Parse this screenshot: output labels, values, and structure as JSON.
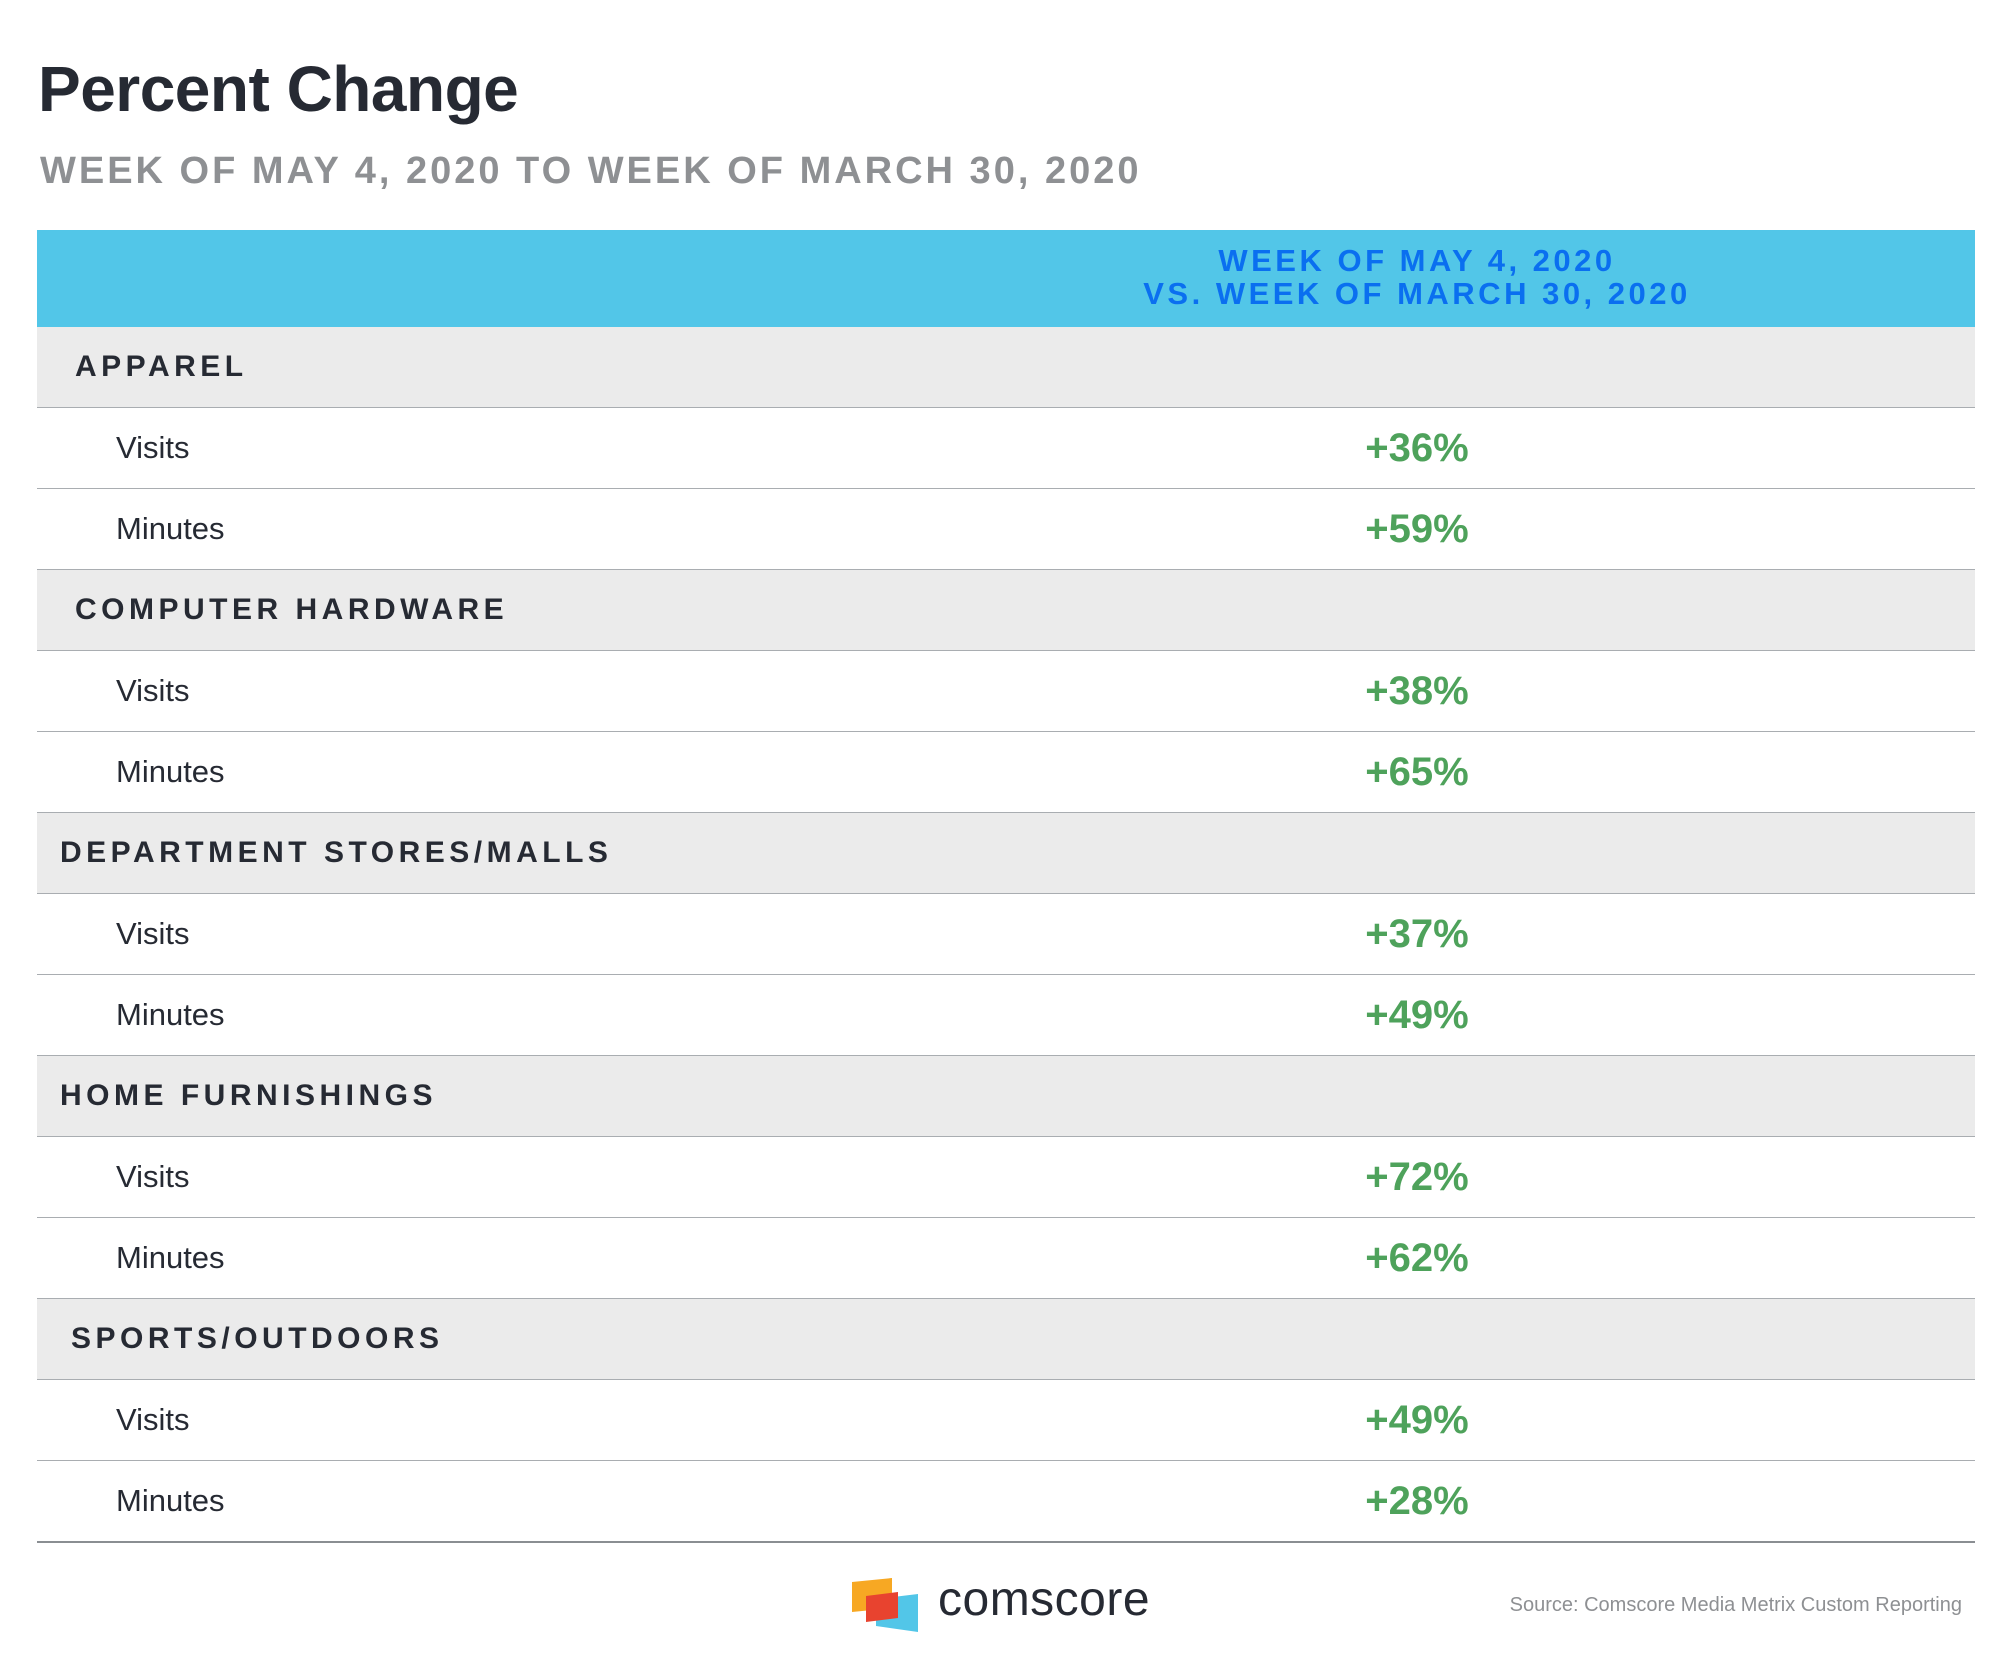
{
  "chart_data": {
    "type": "table",
    "title": "Percent Change",
    "subtitle": "WEEK OF MAY 4, 2020 TO WEEK OF MARCH 30, 2020",
    "column_header": [
      "WEEK OF MAY 4, 2020",
      "VS. WEEK OF MARCH 30, 2020"
    ],
    "categories": [
      {
        "name": "APPAREL",
        "rows": [
          {
            "metric": "Visits",
            "value": "+36%"
          },
          {
            "metric": "Minutes",
            "value": "+59%"
          }
        ]
      },
      {
        "name": "COMPUTER HARDWARE",
        "rows": [
          {
            "metric": "Visits",
            "value": "+38%"
          },
          {
            "metric": "Minutes",
            "value": "+65%"
          }
        ]
      },
      {
        "name": "DEPARTMENT STORES/MALLS",
        "rows": [
          {
            "metric": "Visits",
            "value": "+37%"
          },
          {
            "metric": "Minutes",
            "value": "+49%"
          }
        ]
      },
      {
        "name": "HOME FURNISHINGS",
        "rows": [
          {
            "metric": "Visits",
            "value": "+72%"
          },
          {
            "metric": "Minutes",
            "value": "+62%"
          }
        ]
      },
      {
        "name": "SPORTS/OUTDOORS",
        "rows": [
          {
            "metric": "Visits",
            "value": "+49%"
          },
          {
            "metric": "Minutes",
            "value": "+28%"
          }
        ]
      }
    ]
  },
  "footer": {
    "logo_word": "comscore",
    "source": "Source: Comscore Media Metrix Custom Reporting"
  },
  "colors": {
    "header_bg": "#52c6e8",
    "header_text": "#0a6ff0",
    "category_bg": "#ebebeb",
    "value_text": "#4ea25b",
    "title_text": "#262a33",
    "subtitle_text": "#8e9093",
    "logo_orange": "#f7a823",
    "logo_red": "#e8432f",
    "logo_blue": "#52c6e8"
  }
}
